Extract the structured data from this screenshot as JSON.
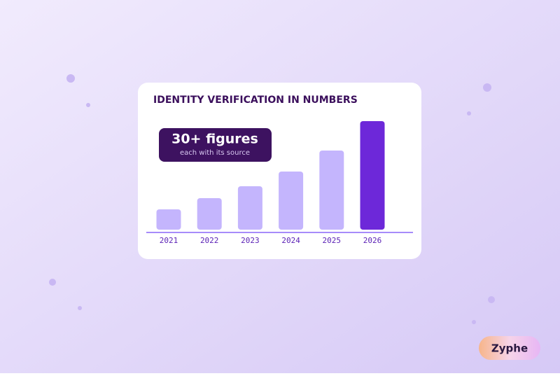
{
  "chart_data": {
    "type": "bar",
    "title": "IDENTITY VERIFICATION IN NUMBERS",
    "annotations": {
      "headline": "30+ figures",
      "subline": "each with its source"
    },
    "categories": [
      "2021",
      "2022",
      "2023",
      "2024",
      "2025",
      "2026"
    ],
    "values": [
      29,
      45,
      62,
      83,
      113,
      155
    ],
    "colors": [
      "#c4b5fd",
      "#c4b5fd",
      "#c4b5fd",
      "#c4b5fd",
      "#c4b5fd",
      "#6d28d9"
    ],
    "ylim": [
      0,
      155
    ]
  },
  "brand": "Zyphe"
}
